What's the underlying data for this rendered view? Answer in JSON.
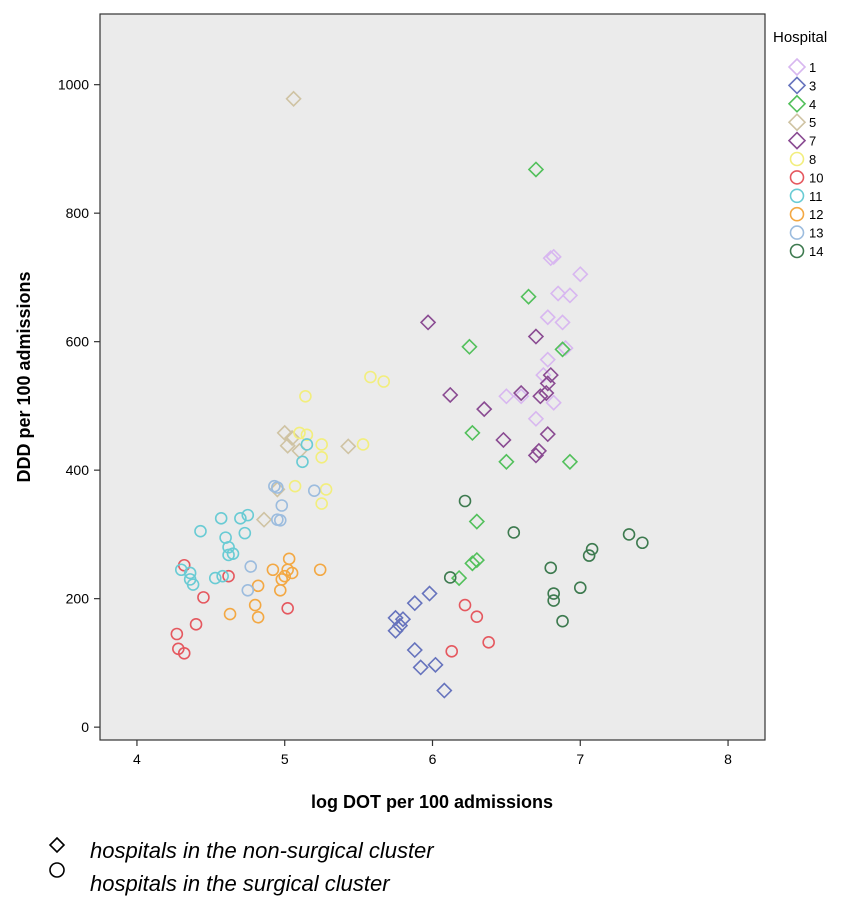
{
  "chart_data": {
    "type": "scatter",
    "xlabel": "log DOT per 100 admissions",
    "ylabel": "DDD per 100 admissions",
    "xlim": [
      3.75,
      8.25
    ],
    "ylim": [
      -20,
      1110
    ],
    "xticks": [
      4,
      5,
      6,
      7,
      8
    ],
    "yticks": [
      0,
      200,
      400,
      600,
      800,
      1000
    ],
    "grid": false,
    "legend_title": "Hospital",
    "legend_position": "right",
    "series": [
      {
        "name": "1",
        "marker": "diamond",
        "color": "#d8b7f0",
        "points": [
          [
            6.8,
            730
          ],
          [
            6.82,
            732
          ],
          [
            7.0,
            705
          ],
          [
            6.85,
            675
          ],
          [
            6.93,
            672
          ],
          [
            6.78,
            638
          ],
          [
            6.88,
            630
          ],
          [
            6.9,
            590
          ],
          [
            6.78,
            572
          ],
          [
            6.75,
            548
          ],
          [
            6.5,
            515
          ],
          [
            6.6,
            515
          ],
          [
            6.82,
            505
          ],
          [
            6.7,
            480
          ]
        ]
      },
      {
        "name": "3",
        "marker": "diamond",
        "color": "#6673bd",
        "points": [
          [
            5.75,
            170
          ],
          [
            5.8,
            168
          ],
          [
            5.78,
            158
          ],
          [
            5.75,
            150
          ],
          [
            5.88,
            193
          ],
          [
            5.98,
            208
          ],
          [
            5.88,
            120
          ],
          [
            5.92,
            93
          ],
          [
            6.02,
            97
          ],
          [
            6.08,
            57
          ]
        ]
      },
      {
        "name": "4",
        "marker": "diamond",
        "color": "#52c05b",
        "points": [
          [
            6.7,
            868
          ],
          [
            6.65,
            670
          ],
          [
            6.25,
            592
          ],
          [
            6.88,
            588
          ],
          [
            6.27,
            458
          ],
          [
            6.5,
            413
          ],
          [
            6.93,
            413
          ],
          [
            6.3,
            320
          ],
          [
            6.3,
            260
          ],
          [
            6.27,
            255
          ],
          [
            6.18,
            232
          ]
        ]
      },
      {
        "name": "5",
        "marker": "diamond",
        "color": "#cfc3a3",
        "points": [
          [
            5.06,
            978
          ],
          [
            5.0,
            458
          ],
          [
            5.05,
            450
          ],
          [
            5.02,
            438
          ],
          [
            5.1,
            430
          ],
          [
            5.43,
            437
          ],
          [
            4.95,
            370
          ],
          [
            4.86,
            323
          ]
        ]
      },
      {
        "name": "7",
        "marker": "diamond",
        "color": "#8a4b92",
        "points": [
          [
            5.97,
            630
          ],
          [
            6.7,
            608
          ],
          [
            6.6,
            520
          ],
          [
            6.78,
            535
          ],
          [
            6.77,
            520
          ],
          [
            6.73,
            515
          ],
          [
            6.8,
            548
          ],
          [
            6.12,
            517
          ],
          [
            6.35,
            495
          ],
          [
            6.78,
            456
          ],
          [
            6.48,
            447
          ],
          [
            6.72,
            430
          ],
          [
            6.7,
            423
          ]
        ]
      },
      {
        "name": "8",
        "marker": "circle",
        "color": "#f2ee7d",
        "points": [
          [
            5.58,
            545
          ],
          [
            5.67,
            538
          ],
          [
            5.14,
            515
          ],
          [
            5.1,
            458
          ],
          [
            5.15,
            455
          ],
          [
            5.25,
            440
          ],
          [
            5.53,
            440
          ],
          [
            5.25,
            420
          ],
          [
            5.07,
            375
          ],
          [
            5.28,
            370
          ],
          [
            5.25,
            348
          ]
        ]
      },
      {
        "name": "10",
        "marker": "circle",
        "color": "#e5585f",
        "points": [
          [
            4.32,
            252
          ],
          [
            4.62,
            235
          ],
          [
            4.45,
            202
          ],
          [
            4.4,
            160
          ],
          [
            4.27,
            145
          ],
          [
            4.28,
            122
          ],
          [
            4.32,
            115
          ],
          [
            5.02,
            185
          ],
          [
            6.22,
            190
          ],
          [
            6.3,
            172
          ],
          [
            6.38,
            132
          ],
          [
            6.13,
            118
          ]
        ]
      },
      {
        "name": "11",
        "marker": "circle",
        "color": "#69cbd4",
        "points": [
          [
            4.43,
            305
          ],
          [
            4.57,
            325
          ],
          [
            4.3,
            245
          ],
          [
            4.36,
            240
          ],
          [
            4.36,
            230
          ],
          [
            4.38,
            222
          ],
          [
            4.6,
            295
          ],
          [
            4.62,
            268
          ],
          [
            4.62,
            280
          ],
          [
            4.65,
            270
          ],
          [
            4.53,
            232
          ],
          [
            4.58,
            235
          ],
          [
            4.7,
            325
          ],
          [
            4.73,
            302
          ],
          [
            4.75,
            330
          ],
          [
            5.12,
            413
          ],
          [
            5.15,
            440
          ]
        ]
      },
      {
        "name": "12",
        "marker": "circle",
        "color": "#f3a843",
        "points": [
          [
            5.03,
            262
          ],
          [
            5.02,
            245
          ],
          [
            4.92,
            245
          ],
          [
            5.0,
            235
          ],
          [
            5.05,
            240
          ],
          [
            4.98,
            230
          ],
          [
            5.24,
            245
          ],
          [
            4.82,
            220
          ],
          [
            4.97,
            213
          ],
          [
            4.8,
            190
          ],
          [
            4.63,
            176
          ],
          [
            4.82,
            171
          ]
        ]
      },
      {
        "name": "13",
        "marker": "circle",
        "color": "#9cbcde",
        "points": [
          [
            4.93,
            375
          ],
          [
            4.95,
            373
          ],
          [
            4.98,
            345
          ],
          [
            4.95,
            323
          ],
          [
            5.2,
            368
          ],
          [
            4.77,
            250
          ],
          [
            4.75,
            213
          ],
          [
            4.97,
            322
          ]
        ]
      },
      {
        "name": "14",
        "marker": "circle",
        "color": "#3d7a4f",
        "points": [
          [
            6.22,
            352
          ],
          [
            6.55,
            303
          ],
          [
            6.12,
            233
          ],
          [
            7.33,
            300
          ],
          [
            7.42,
            287
          ],
          [
            7.08,
            277
          ],
          [
            7.06,
            267
          ],
          [
            6.8,
            248
          ],
          [
            7.0,
            217
          ],
          [
            6.82,
            208
          ],
          [
            6.82,
            197
          ],
          [
            6.88,
            165
          ]
        ]
      }
    ]
  },
  "notes": [
    {
      "symbol": "diamond",
      "text": "hospitals in the non-surgical cluster"
    },
    {
      "symbol": "circle",
      "text": "hospitals in the surgical cluster"
    }
  ]
}
